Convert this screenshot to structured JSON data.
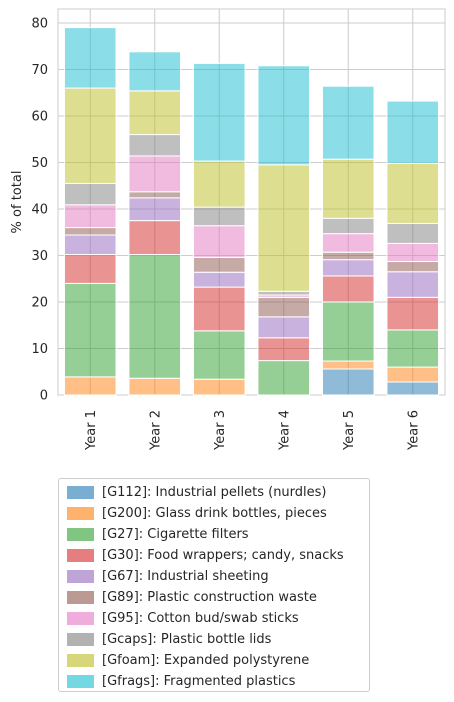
{
  "chart_data": {
    "type": "bar",
    "stacked": true,
    "categories": [
      "Year 1",
      "Year 2",
      "Year 3",
      "Year 4",
      "Year 5",
      "Year 6"
    ],
    "ylabel": "% of total",
    "xlabel": "",
    "ylim": [
      0,
      83
    ],
    "yticks": [
      0,
      10,
      20,
      30,
      40,
      50,
      60,
      70,
      80
    ],
    "grid": true,
    "legend_position": "below",
    "series": [
      {
        "name": "[G112]: Industrial pellets (nurdles)",
        "color": "#1f77b4",
        "values": [
          0,
          0,
          0,
          0,
          5.6,
          2.8
        ]
      },
      {
        "name": "[G200]: Glass drink bottles, pieces",
        "color": "#ff7f0e",
        "values": [
          3.9,
          3.6,
          3.4,
          0,
          1.7,
          3.2
        ]
      },
      {
        "name": "[G27]: Cigarette filters",
        "color": "#2ca02c",
        "values": [
          20.1,
          26.6,
          10.4,
          7.4,
          12.7,
          8.0
        ]
      },
      {
        "name": "[G30]: Food wrappers; candy, snacks",
        "color": "#d62728",
        "values": [
          6.2,
          7.3,
          9.4,
          4.9,
          5.6,
          7.0
        ]
      },
      {
        "name": "[G67]: Industrial sheeting",
        "color": "#9467bd",
        "values": [
          4.2,
          4.9,
          3.2,
          4.5,
          3.5,
          5.5
        ]
      },
      {
        "name": "[G89]: Plastic construction waste",
        "color": "#8c564b",
        "values": [
          1.6,
          1.3,
          3.2,
          4.2,
          1.6,
          2.2
        ]
      },
      {
        "name": "[G95]: Cotton bud/swab sticks",
        "color": "#e377c2",
        "values": [
          4.9,
          7.7,
          6.8,
          0.5,
          4.0,
          3.9
        ]
      },
      {
        "name": "[Gcaps]: Plastic bottle lids",
        "color": "#7f7f7f",
        "values": [
          4.6,
          4.6,
          4.0,
          0.8,
          3.3,
          4.3
        ]
      },
      {
        "name": "[Gfoam]: Expanded polystyrene",
        "color": "#bcbd22",
        "values": [
          20.5,
          9.4,
          9.9,
          27.2,
          12.7,
          12.9
        ]
      },
      {
        "name": "[Gfrags]: Fragmented plastics",
        "color": "#17becf",
        "values": [
          13.0,
          8.4,
          21.0,
          21.3,
          15.7,
          13.4
        ]
      }
    ]
  }
}
